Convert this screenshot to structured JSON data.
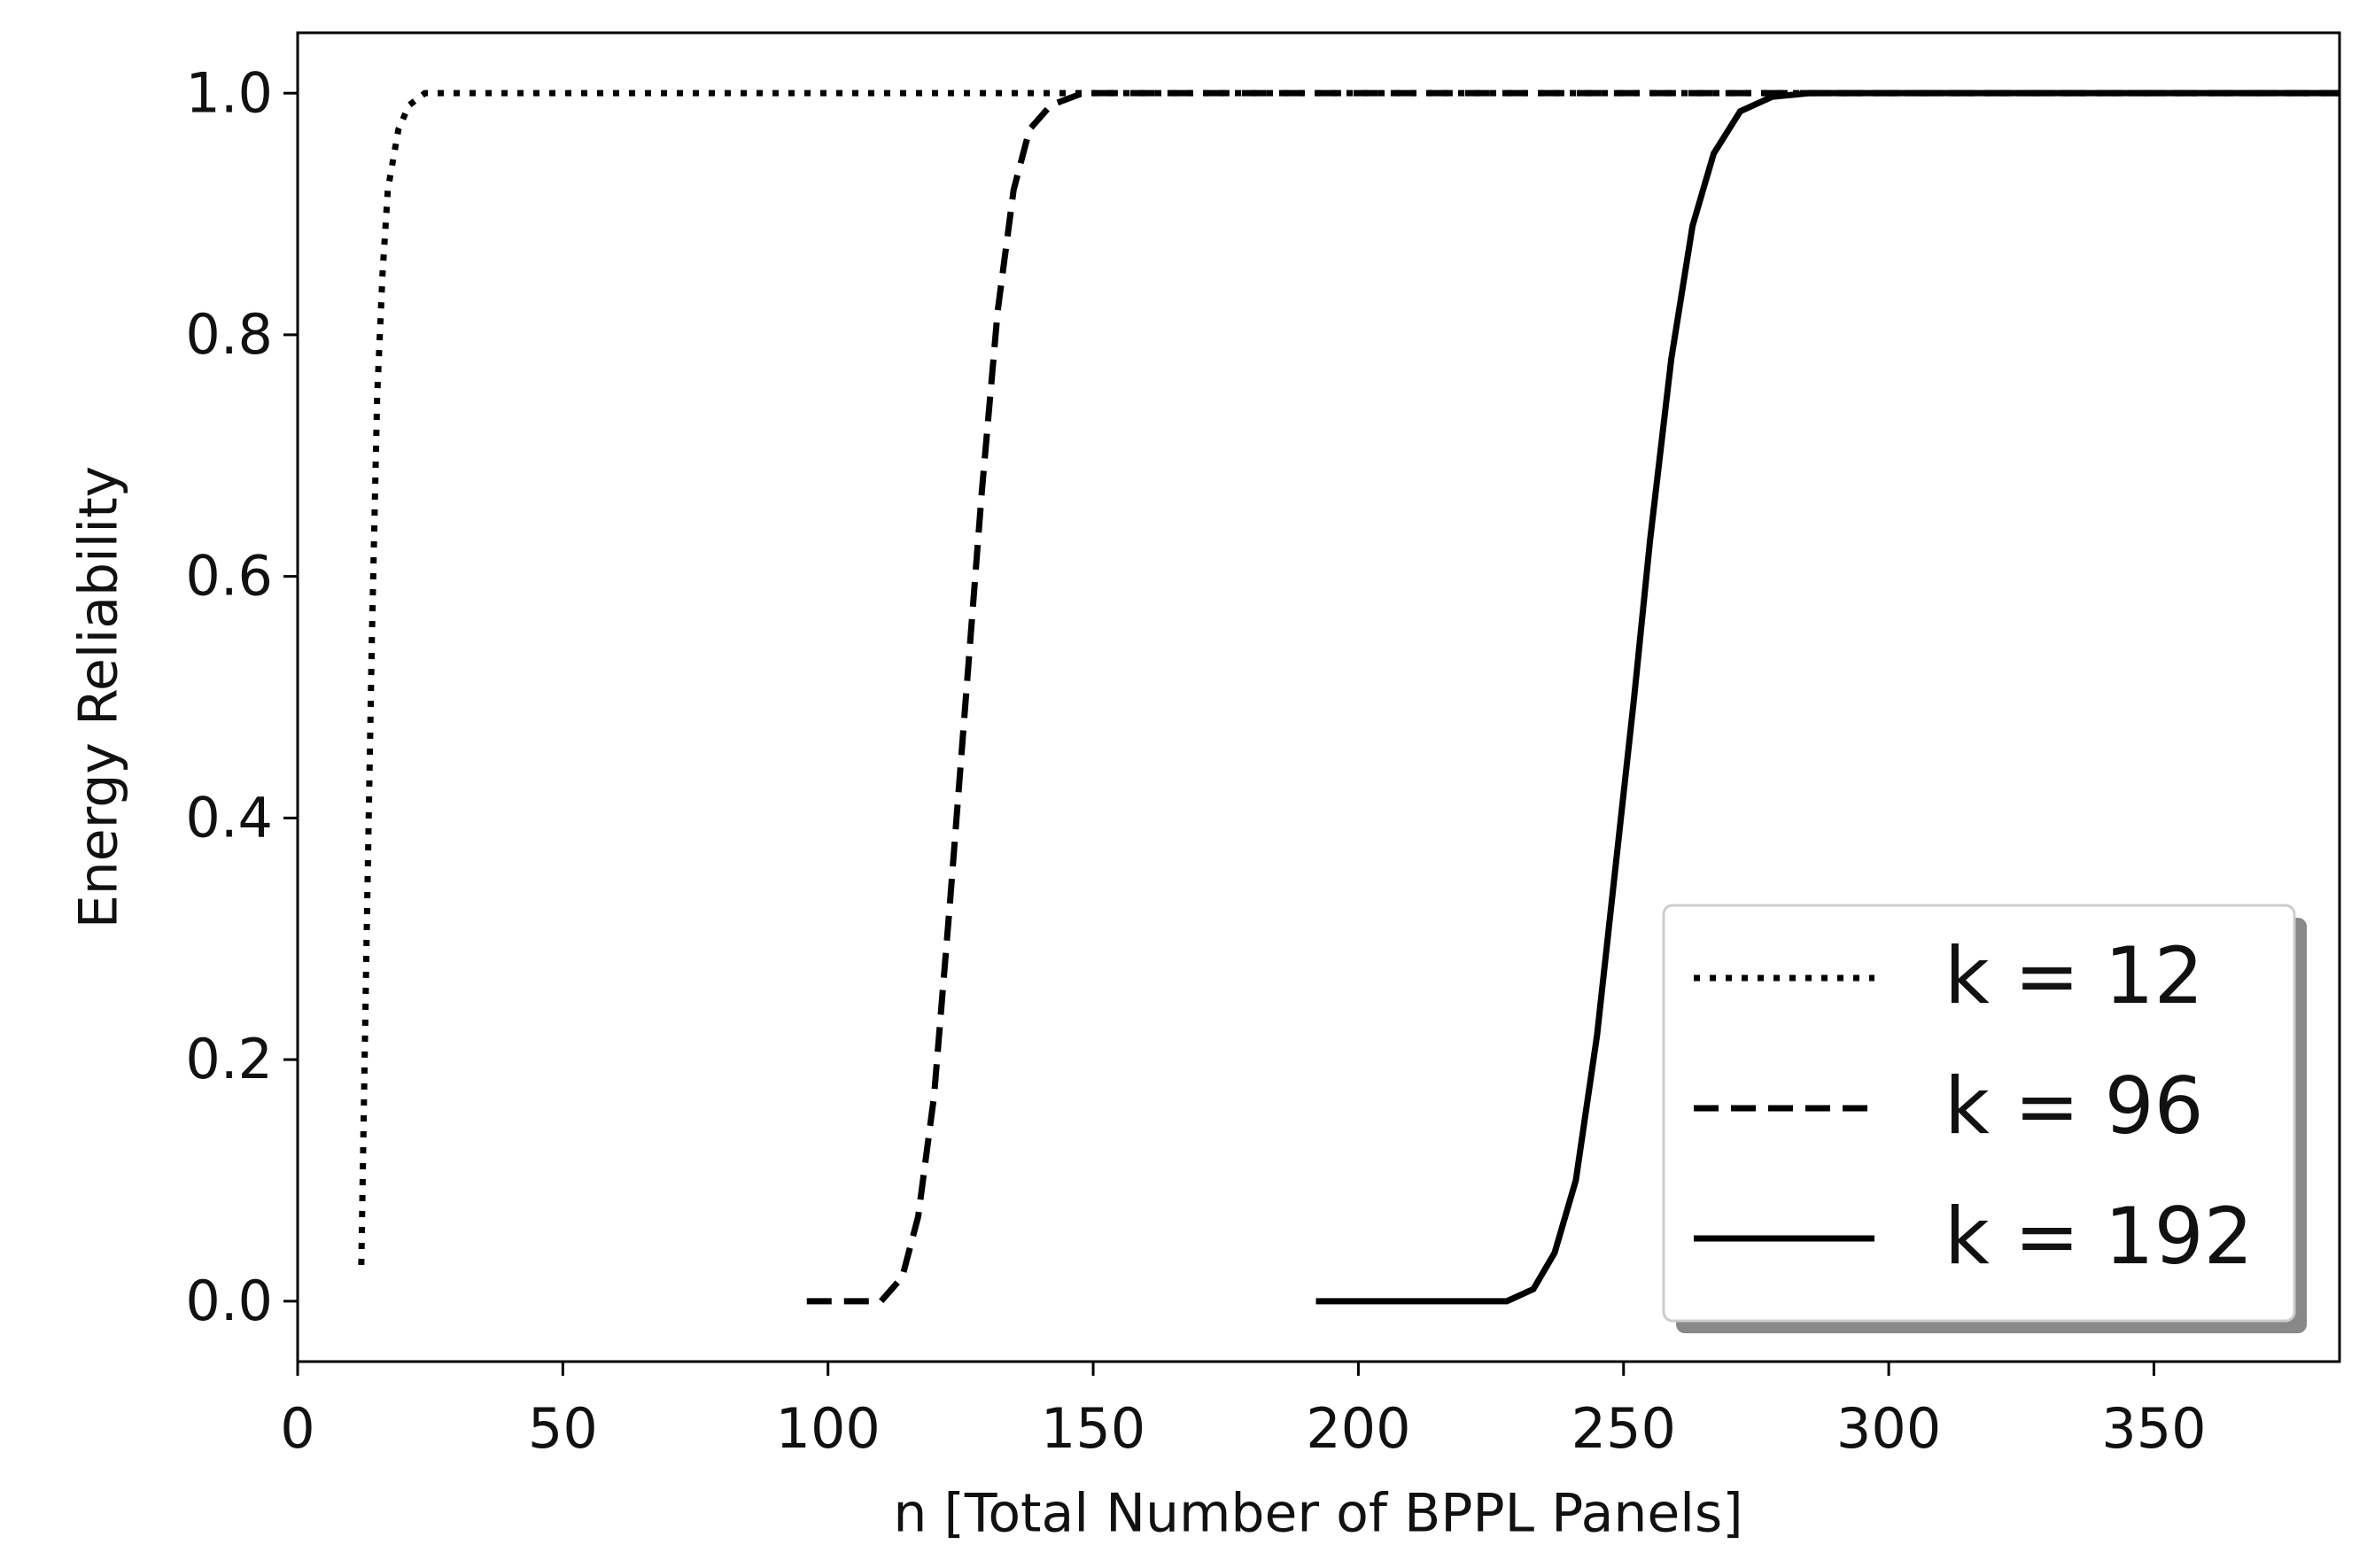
{
  "chart_data": {
    "type": "line",
    "xlabel": "n [Total Number of BPPL Panels]",
    "ylabel": "Energy Reliability",
    "xlim": [
      0,
      385
    ],
    "ylim": [
      -0.05,
      1.05
    ],
    "xticks": [
      0,
      50,
      100,
      150,
      200,
      250,
      300,
      350
    ],
    "yticks": [
      {
        "value": 0,
        "label": "0.0"
      },
      {
        "value": 0.2,
        "label": "0.2"
      },
      {
        "value": 0.4,
        "label": "0.4"
      },
      {
        "value": 0.6,
        "label": "0.6"
      },
      {
        "value": 0.8,
        "label": "0.8"
      },
      {
        "value": 1,
        "label": "1.0"
      }
    ],
    "legend": "lower right",
    "series": [
      {
        "name": "k = 12",
        "color": "#000000",
        "style": "dotted",
        "x": [
          12,
          13,
          14,
          15,
          16,
          17,
          19,
          21,
          24,
          385
        ],
        "values": [
          0.03,
          0.3,
          0.55,
          0.75,
          0.85,
          0.92,
          0.97,
          0.99,
          1.0,
          1.0
        ]
      },
      {
        "name": "k = 96",
        "color": "#000000",
        "style": "dashed",
        "x": [
          96,
          110,
          114,
          117,
          120,
          123,
          126,
          129,
          132,
          135,
          138,
          142,
          148,
          385
        ],
        "values": [
          0,
          0,
          0.02,
          0.07,
          0.17,
          0.33,
          0.5,
          0.67,
          0.82,
          0.92,
          0.97,
          0.99,
          1.0,
          1.0
        ]
      },
      {
        "name": "k = 192",
        "color": "#000000",
        "style": "solid",
        "x": [
          192,
          228,
          233,
          237,
          241,
          245,
          249,
          252,
          255,
          259,
          263,
          267,
          272,
          278,
          285,
          385
        ],
        "values": [
          0,
          0,
          0.01,
          0.04,
          0.1,
          0.22,
          0.38,
          0.5,
          0.63,
          0.78,
          0.89,
          0.95,
          0.985,
          0.997,
          1.0,
          1.0
        ]
      }
    ]
  }
}
